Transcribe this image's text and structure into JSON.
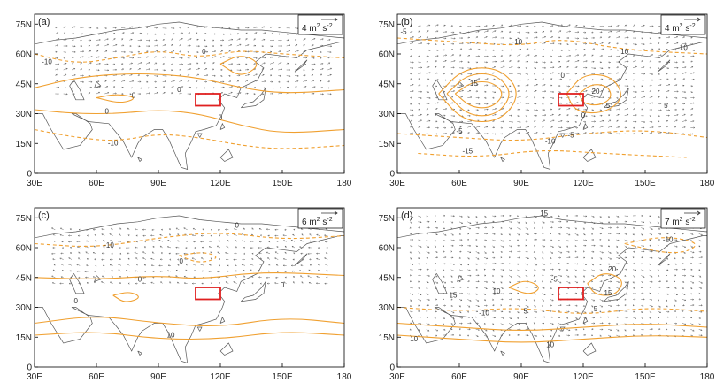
{
  "chart_data": [
    {
      "type": "vector_contour_map",
      "panel_label": "(a)",
      "xlim": [
        30,
        180
      ],
      "ylim": [
        0,
        80
      ],
      "x_ticks": [
        "30E",
        "60E",
        "90E",
        "120E",
        "150E",
        "180"
      ],
      "y_ticks": [
        "0",
        "15N",
        "30N",
        "45N",
        "60N",
        "75N"
      ],
      "reference_vector": {
        "value": "4",
        "unit": "m",
        "unit_exp": "2",
        "unit2": "s",
        "unit2_exp": "-2"
      },
      "highlight_box": {
        "lon": [
          108,
          120
        ],
        "lat": [
          34,
          40
        ]
      },
      "contour_labels": [
        {
          "text": "0",
          "lon": 112,
          "lat": 60
        },
        {
          "text": "-10",
          "lon": 36,
          "lat": 55
        },
        {
          "text": "0",
          "lon": 78,
          "lat": 38
        },
        {
          "text": "0",
          "lon": 100,
          "lat": 41
        },
        {
          "text": "0",
          "lon": 65,
          "lat": 30
        },
        {
          "text": "0",
          "lon": 120,
          "lat": 27
        },
        {
          "text": "-10",
          "lon": 68,
          "lat": 14
        }
      ],
      "contours": {
        "solid": [
          [
            [
              30,
              43
            ],
            [
              50,
              48
            ],
            [
              70,
              50
            ],
            [
              90,
              50
            ],
            [
              110,
              48
            ],
            [
              130,
              43
            ],
            [
              150,
              40
            ],
            [
              180,
              42
            ]
          ],
          [
            [
              30,
              32
            ],
            [
              50,
              30
            ],
            [
              70,
              30
            ],
            [
              90,
              32
            ],
            [
              110,
              30
            ],
            [
              130,
              24
            ],
            [
              150,
              20
            ],
            [
              180,
              22
            ]
          ],
          [
            [
              60,
              38
            ],
            [
              70,
              40
            ],
            [
              80,
              38
            ],
            [
              72,
              35
            ],
            [
              60,
              38
            ]
          ],
          [
            [
              120,
              55
            ],
            [
              130,
              60
            ],
            [
              140,
              55
            ],
            [
              130,
              48
            ],
            [
              120,
              55
            ]
          ]
        ],
        "dashed": [
          [
            [
              30,
              60
            ],
            [
              50,
              55
            ],
            [
              70,
              58
            ],
            [
              90,
              62
            ],
            [
              110,
              58
            ],
            [
              130,
              62
            ],
            [
              150,
              60
            ],
            [
              180,
              58
            ]
          ],
          [
            [
              30,
              22
            ],
            [
              50,
              18
            ],
            [
              70,
              16
            ],
            [
              90,
              20
            ],
            [
              110,
              18
            ],
            [
              130,
              14
            ],
            [
              150,
              12
            ],
            [
              180,
              14
            ]
          ]
        ]
      },
      "vectors": {
        "lon": [
          40,
          175
        ],
        "lat": [
          40,
          75
        ],
        "dx": 1.5,
        "dy": 0.3
      }
    },
    {
      "type": "vector_contour_map",
      "panel_label": "(b)",
      "xlim": [
        30,
        180
      ],
      "ylim": [
        0,
        80
      ],
      "x_ticks": [
        "30E",
        "60E",
        "90E",
        "120E",
        "150E",
        "180"
      ],
      "y_ticks": [
        "0",
        "15N",
        "30N",
        "45N",
        "60N",
        "75N"
      ],
      "reference_vector": {
        "value": "4",
        "unit": "m",
        "unit_exp": "2",
        "unit2": "s",
        "unit2_exp": "-2"
      },
      "highlight_box": {
        "lon": [
          108,
          120
        ],
        "lat": [
          34,
          40
        ]
      },
      "contour_labels": [
        {
          "text": "-5",
          "lon": 33,
          "lat": 70
        },
        {
          "text": "-10",
          "lon": 88,
          "lat": 65
        },
        {
          "text": "10",
          "lon": 140,
          "lat": 60
        },
        {
          "text": "15",
          "lon": 67,
          "lat": 44
        },
        {
          "text": "20",
          "lon": 126,
          "lat": 40
        },
        {
          "text": "0",
          "lon": 110,
          "lat": 48
        },
        {
          "text": "0",
          "lon": 120,
          "lat": 28
        },
        {
          "text": "5",
          "lon": 132,
          "lat": 33
        },
        {
          "text": "-5",
          "lon": 60,
          "lat": 20
        },
        {
          "text": "-10",
          "lon": 104,
          "lat": 15
        },
        {
          "text": "-15",
          "lon": 64,
          "lat": 10
        },
        {
          "text": "-5",
          "lon": 114,
          "lat": 18
        },
        {
          "text": "5",
          "lon": 160,
          "lat": 33
        },
        {
          "text": "-10",
          "lon": 168,
          "lat": 62
        }
      ],
      "contours": {
        "solid": [
          [
            [
              58,
              40
            ],
            [
              66,
              46
            ],
            [
              76,
              46
            ],
            [
              82,
              40
            ],
            [
              76,
              33
            ],
            [
              66,
              33
            ],
            [
              58,
              40
            ]
          ],
          [
            [
              54,
              40
            ],
            [
              64,
              50
            ],
            [
              78,
              50
            ],
            [
              86,
              40
            ],
            [
              78,
              29
            ],
            [
              64,
              29
            ],
            [
              54,
              40
            ]
          ],
          [
            [
              50,
              40
            ],
            [
              62,
              53
            ],
            [
              80,
              53
            ],
            [
              90,
              40
            ],
            [
              80,
              26
            ],
            [
              62,
              26
            ],
            [
              50,
              40
            ]
          ],
          [
            [
              118,
              40
            ],
            [
              124,
              45
            ],
            [
              132,
              44
            ],
            [
              134,
              38
            ],
            [
              128,
              34
            ],
            [
              120,
              35
            ],
            [
              118,
              40
            ]
          ],
          [
            [
              112,
              40
            ],
            [
              120,
              50
            ],
            [
              134,
              49
            ],
            [
              140,
              38
            ],
            [
              130,
              30
            ],
            [
              116,
              31
            ],
            [
              112,
              40
            ]
          ]
        ],
        "dashed": [
          [
            [
              30,
              68
            ],
            [
              60,
              66
            ],
            [
              90,
              64
            ],
            [
              110,
              68
            ],
            [
              140,
              62
            ],
            [
              180,
              60
            ]
          ],
          [
            [
              30,
              20
            ],
            [
              60,
              18
            ],
            [
              90,
              16
            ],
            [
              120,
              20
            ],
            [
              150,
              22
            ],
            [
              180,
              18
            ]
          ],
          [
            [
              40,
              10
            ],
            [
              70,
              8
            ],
            [
              100,
              12
            ],
            [
              130,
              10
            ],
            [
              170,
              8
            ]
          ]
        ]
      },
      "vectors": {
        "lon": [
          36,
          175
        ],
        "lat": [
          20,
          76
        ],
        "dx": 1.5,
        "dy": 0.2
      }
    },
    {
      "type": "vector_contour_map",
      "panel_label": "(c)",
      "xlim": [
        30,
        180
      ],
      "ylim": [
        0,
        80
      ],
      "x_ticks": [
        "30E",
        "60E",
        "90E",
        "120E",
        "150E",
        "180"
      ],
      "y_ticks": [
        "0",
        "15N",
        "30N",
        "45N",
        "60N",
        "75N"
      ],
      "reference_vector": {
        "value": "6",
        "unit": "m",
        "unit_exp": "2",
        "unit2": "s",
        "unit2_exp": "-2"
      },
      "highlight_box": {
        "lon": [
          108,
          120
        ],
        "lat": [
          34,
          40
        ]
      },
      "contour_labels": [
        {
          "text": "0",
          "lon": 128,
          "lat": 70
        },
        {
          "text": "-10",
          "lon": 66,
          "lat": 60
        },
        {
          "text": "0",
          "lon": 101,
          "lat": 52
        },
        {
          "text": "0",
          "lon": 81,
          "lat": 43
        },
        {
          "text": "0",
          "lon": 50,
          "lat": 32
        },
        {
          "text": "10",
          "lon": 96,
          "lat": 15
        },
        {
          "text": "0",
          "lon": 150,
          "lat": 40
        }
      ],
      "contours": {
        "solid": [
          [
            [
              30,
              45
            ],
            [
              60,
              44
            ],
            [
              90,
              46
            ],
            [
              110,
              44
            ],
            [
              140,
              48
            ],
            [
              180,
              46
            ]
          ],
          [
            [
              30,
              22
            ],
            [
              60,
              26
            ],
            [
              90,
              22
            ],
            [
              120,
              20
            ],
            [
              150,
              25
            ],
            [
              180,
              22
            ]
          ],
          [
            [
              30,
              16
            ],
            [
              60,
              18
            ],
            [
              90,
              14
            ],
            [
              120,
              14
            ],
            [
              150,
              18
            ],
            [
              180,
              16
            ]
          ],
          [
            [
              68,
              36
            ],
            [
              76,
              38
            ],
            [
              82,
              35
            ],
            [
              74,
              32
            ],
            [
              68,
              36
            ]
          ]
        ],
        "dashed": [
          [
            [
              30,
              62
            ],
            [
              60,
              60
            ],
            [
              90,
              65
            ],
            [
              120,
              68
            ],
            [
              150,
              64
            ],
            [
              180,
              66
            ]
          ],
          [
            [
              100,
              56
            ],
            [
              110,
              52
            ],
            [
              120,
              55
            ],
            [
              112,
              58
            ],
            [
              100,
              56
            ]
          ]
        ]
      },
      "vectors": {
        "lon": [
          40,
          175
        ],
        "lat": [
          42,
          70
        ],
        "dx": -1.2,
        "dy": 0.4
      }
    },
    {
      "type": "vector_contour_map",
      "panel_label": "(d)",
      "xlim": [
        30,
        180
      ],
      "ylim": [
        0,
        80
      ],
      "x_ticks": [
        "30E",
        "60E",
        "90E",
        "120E",
        "150E",
        "180"
      ],
      "y_ticks": [
        "0",
        "15N",
        "30N",
        "45N",
        "60N",
        "75N"
      ],
      "reference_vector": {
        "value": "7",
        "unit": "m",
        "unit_exp": "2",
        "unit2": "s",
        "unit2_exp": "-2"
      },
      "highlight_box": {
        "lon": [
          108,
          120
        ],
        "lat": [
          34,
          40
        ]
      },
      "contour_labels": [
        {
          "text": "15",
          "lon": 101,
          "lat": 76
        },
        {
          "text": "-10",
          "lon": 161,
          "lat": 63
        },
        {
          "text": "20",
          "lon": 134,
          "lat": 48
        },
        {
          "text": "15",
          "lon": 132,
          "lat": 36
        },
        {
          "text": "15",
          "lon": 57,
          "lat": 35
        },
        {
          "text": "-10",
          "lon": 72,
          "lat": 26
        },
        {
          "text": "10",
          "lon": 78,
          "lat": 37
        },
        {
          "text": "10",
          "lon": 38,
          "lat": 13
        },
        {
          "text": "-5",
          "lon": 106,
          "lat": 43
        },
        {
          "text": "5",
          "lon": 126,
          "lat": 28
        },
        {
          "text": "10",
          "lon": 104,
          "lat": 10
        },
        {
          "text": "5",
          "lon": 92,
          "lat": 27
        }
      ],
      "contours": {
        "solid": [
          [
            [
              30,
              22
            ],
            [
              60,
              20
            ],
            [
              90,
              18
            ],
            [
              120,
              20
            ],
            [
              150,
              22
            ],
            [
              180,
              20
            ]
          ],
          [
            [
              30,
              16
            ],
            [
              60,
              14
            ],
            [
              90,
              12
            ],
            [
              120,
              14
            ],
            [
              150,
              16
            ],
            [
              180,
              15
            ]
          ],
          [
            [
              122,
              42
            ],
            [
              130,
              48
            ],
            [
              140,
              44
            ],
            [
              136,
              36
            ],
            [
              126,
              36
            ],
            [
              122,
              42
            ]
          ],
          [
            [
              84,
              40
            ],
            [
              92,
              44
            ],
            [
              100,
              40
            ],
            [
              94,
              36
            ],
            [
              84,
              40
            ]
          ]
        ],
        "dashed": [
          [
            [
              30,
              30
            ],
            [
              60,
              28
            ],
            [
              90,
              30
            ],
            [
              120,
              26
            ],
            [
              150,
              30
            ],
            [
              180,
              28
            ]
          ],
          [
            [
              140,
              62
            ],
            [
              160,
              66
            ],
            [
              178,
              62
            ],
            [
              165,
              56
            ],
            [
              140,
              62
            ]
          ]
        ]
      },
      "vectors": {
        "lon": [
          36,
          178
        ],
        "lat": [
          16,
          76
        ],
        "dx": 1.2,
        "dy": -0.4
      }
    }
  ],
  "colors": {
    "contour": "#f0a030",
    "vector": "#666666",
    "box": "#e02020",
    "land": "#555555"
  }
}
